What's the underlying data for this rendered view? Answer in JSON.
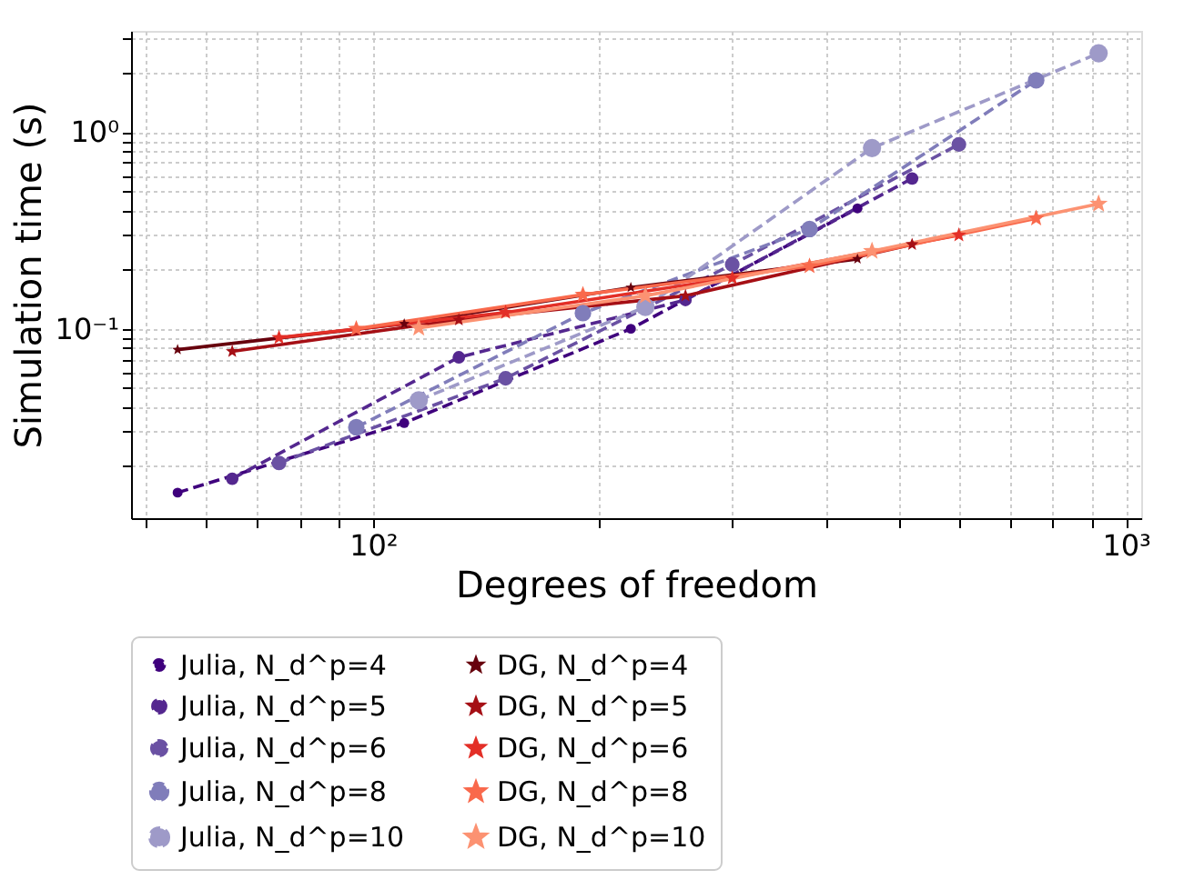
{
  "chart_data": {
    "type": "line",
    "xlabel": "Degrees of freedom",
    "ylabel": "Simulation time (s)",
    "log": "xy",
    "grid": true,
    "legend": "bottom",
    "xlim": [
      47.7,
      1048
    ],
    "ylim": [
      0.0109,
      3.26
    ],
    "xticks": [
      {
        "value": 50,
        "label": null
      },
      {
        "value": 60,
        "label": null
      },
      {
        "value": 70,
        "label": null
      },
      {
        "value": 80,
        "label": null
      },
      {
        "value": 90,
        "label": null
      },
      {
        "value": 100,
        "label": "10²"
      },
      {
        "value": 200,
        "label": null
      },
      {
        "value": 300,
        "label": null
      },
      {
        "value": 400,
        "label": null
      },
      {
        "value": 500,
        "label": null
      },
      {
        "value": 600,
        "label": null
      },
      {
        "value": 700,
        "label": null
      },
      {
        "value": 800,
        "label": null
      },
      {
        "value": 900,
        "label": null
      },
      {
        "value": 1000,
        "label": "10³"
      }
    ],
    "yticks": [
      {
        "value": 0.02,
        "label": null
      },
      {
        "value": 0.03,
        "label": null
      },
      {
        "value": 0.04,
        "label": null
      },
      {
        "value": 0.05,
        "label": null
      },
      {
        "value": 0.06,
        "label": null
      },
      {
        "value": 0.07,
        "label": null
      },
      {
        "value": 0.08,
        "label": null
      },
      {
        "value": 0.09,
        "label": null
      },
      {
        "value": 0.1,
        "label": "10⁻¹"
      },
      {
        "value": 0.2,
        "label": null
      },
      {
        "value": 0.3,
        "label": null
      },
      {
        "value": 0.4,
        "label": null
      },
      {
        "value": 0.5,
        "label": null
      },
      {
        "value": 0.6,
        "label": null
      },
      {
        "value": 0.7,
        "label": null
      },
      {
        "value": 0.8,
        "label": null
      },
      {
        "value": 0.9,
        "label": null
      },
      {
        "value": 1,
        "label": "10⁰"
      },
      {
        "value": 2,
        "label": null
      },
      {
        "value": 3,
        "label": null
      }
    ],
    "series": [
      {
        "name": "Julia, N_d^p=4",
        "color": "#3f007d",
        "marker": "circle",
        "line_style": "dashed",
        "x": [
          55,
          110,
          220,
          440
        ],
        "values": [
          0.0147,
          0.0332,
          0.1,
          0.409
        ]
      },
      {
        "name": "Julia, N_d^p=5",
        "color": "#54278f",
        "marker": "circle",
        "line_style": "dashed",
        "x": [
          65,
          130,
          260,
          520
        ],
        "values": [
          0.0173,
          0.0716,
          0.14,
          0.58
        ]
      },
      {
        "name": "Julia, N_d^p=6",
        "color": "#6a51a3",
        "marker": "circle",
        "line_style": "dashed",
        "x": [
          75,
          150,
          300,
          600
        ],
        "values": [
          0.0208,
          0.056,
          0.212,
          0.864
        ]
      },
      {
        "name": "Julia, N_d^p=8",
        "color": "#807dba",
        "marker": "circle",
        "line_style": "dashed",
        "x": [
          95,
          190,
          380,
          760
        ],
        "values": [
          0.0316,
          0.12,
          0.321,
          1.83
        ]
      },
      {
        "name": "Julia, N_d^p=10",
        "color": "#9e9ac8",
        "marker": "circle",
        "line_style": "dashed",
        "x": [
          115,
          230,
          460,
          920
        ],
        "values": [
          0.0433,
          0.129,
          0.828,
          2.51
        ]
      },
      {
        "name": "DG, N_d^p=4",
        "color": "#67000d",
        "marker": "star",
        "line_style": "solid",
        "x": [
          55,
          110,
          220,
          440
        ],
        "values": [
          0.0783,
          0.106,
          0.162,
          0.226
        ]
      },
      {
        "name": "DG, N_d^p=5",
        "color": "#a50f15",
        "marker": "star",
        "line_style": "solid",
        "x": [
          65,
          130,
          260,
          520
        ],
        "values": [
          0.0767,
          0.111,
          0.147,
          0.268
        ]
      },
      {
        "name": "DG, N_d^p=6",
        "color": "#e32f27",
        "marker": "star",
        "line_style": "solid",
        "x": [
          75,
          150,
          300,
          600
        ],
        "values": [
          0.0901,
          0.121,
          0.181,
          0.299
        ]
      },
      {
        "name": "DG, N_d^p=8",
        "color": "#f9694c",
        "marker": "star",
        "line_style": "solid",
        "x": [
          95,
          190,
          380,
          760
        ],
        "values": [
          0.1,
          0.149,
          0.208,
          0.364
        ]
      },
      {
        "name": "DG, N_d^p=10",
        "color": "#fc9272",
        "marker": "star",
        "line_style": "solid",
        "x": [
          115,
          230,
          460,
          920
        ],
        "values": [
          0.101,
          0.147,
          0.248,
          0.431
        ]
      }
    ]
  }
}
